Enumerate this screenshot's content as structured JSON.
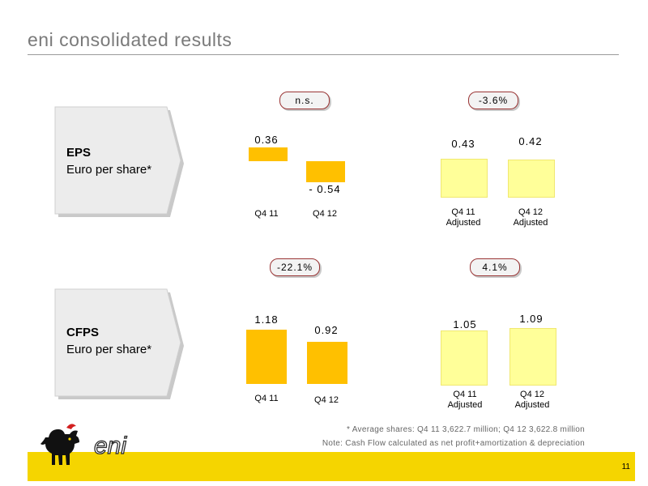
{
  "page": {
    "title": "eni consolidated results",
    "page_number": "11",
    "footnote1": "*   Average shares: Q4 11 3,622.7 million; Q4 12 3,622.8 million",
    "footnote2": "Note: Cash Flow calculated as net profit+amortization & depreciation",
    "logo_text": "eni"
  },
  "colors": {
    "reported": "#ffc000",
    "adjusted": "#ffff99",
    "accent": "#f5d500"
  },
  "sections": {
    "eps": {
      "label": "EPS",
      "sublabel": "Euro per share*"
    },
    "cfps": {
      "label": "CFPS",
      "sublabel": "Euro per share*"
    }
  },
  "chart_data": [
    {
      "type": "bar",
      "section": "EPS",
      "categories": [
        "Q4 11",
        "Q4 12"
      ],
      "values": [
        0.36,
        -0.54
      ],
      "value_labels": [
        "0.36",
        "- 0.54"
      ],
      "change_label": "n.s."
    },
    {
      "type": "bar",
      "section": "EPS",
      "categories": [
        "Q4 11 Adjusted",
        "Q4 12 Adjusted"
      ],
      "values": [
        0.43,
        0.42
      ],
      "value_labels": [
        "0.43",
        "0.42"
      ],
      "change_label": "-3.6%"
    },
    {
      "type": "bar",
      "section": "CFPS",
      "categories": [
        "Q4 11",
        "Q4 12"
      ],
      "values": [
        1.18,
        0.92
      ],
      "value_labels": [
        "1.18",
        "0.92"
      ],
      "change_label": "-22.1%"
    },
    {
      "type": "bar",
      "section": "CFPS",
      "categories": [
        "Q4 11 Adjusted",
        "Q4 12 Adjusted"
      ],
      "values": [
        1.05,
        1.09
      ],
      "value_labels": [
        "1.05",
        "1.09"
      ],
      "change_label": "4.1%"
    }
  ]
}
